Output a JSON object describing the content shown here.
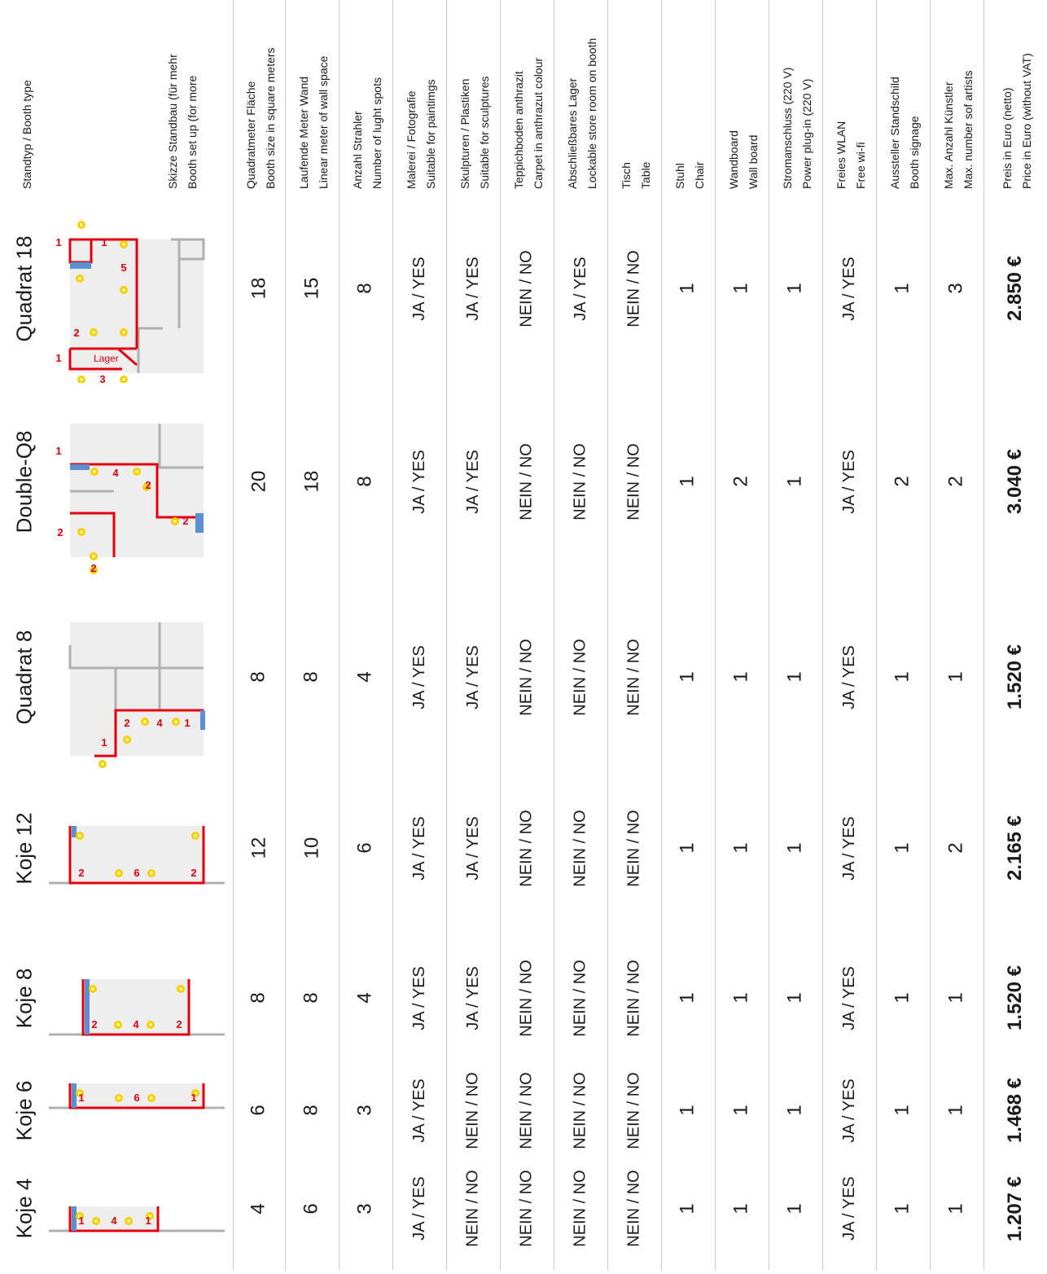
{
  "headers": [
    {
      "lines": [
        "Standtyp / Booth type"
      ]
    },
    {
      "lines": [
        "Skizze Standbau (für mehr",
        "Booth set up (for more"
      ]
    },
    {
      "lines": [
        "Quadratmeter Fläche",
        "Booth size in square meters"
      ]
    },
    {
      "lines": [
        "Laufende Meter Wand",
        "Linear meter of wall space"
      ]
    },
    {
      "lines": [
        "Anzahl Strahler",
        "Number of lught spots"
      ]
    },
    {
      "lines": [
        "Malerei / Fotografie",
        "Suitable for paintimgs"
      ]
    },
    {
      "lines": [
        "Skulpturen / Plastiken",
        "Suitable for sculptures"
      ]
    },
    {
      "lines": [
        "Teppichboden anthrazit",
        "Carpet in anthrazut colour"
      ]
    },
    {
      "lines": [
        "Abschließbares Lager",
        "Lockable store room on booth"
      ]
    },
    {
      "lines": [
        "Tisch",
        "Table"
      ]
    },
    {
      "lines": [
        "Stuhl",
        "Chair"
      ]
    },
    {
      "lines": [
        "Wandboard",
        "Wall board"
      ]
    },
    {
      "lines": [
        "Stromanschluss (220 V)",
        "Power plug-in (220 V)"
      ]
    },
    {
      "lines": [
        "Freies WLAN",
        "Free wi-fi"
      ]
    },
    {
      "lines": [
        "Aussteller Standschild",
        "Booth signage"
      ]
    },
    {
      "lines": [
        "Max. Anzahl Künstler",
        "Max. number sof artists"
      ]
    },
    {
      "lines": [
        "Preis in Euro (netto)",
        "Price in Euro (without VAT)"
      ]
    }
  ],
  "booths": [
    {
      "name": "Quadrat 18",
      "values": [
        "18",
        "15",
        "8",
        "JA / YES",
        "JA / YES",
        "NEIN / NO",
        "JA / YES",
        "NEIN / NO",
        "1",
        "1",
        "1",
        "JA / YES",
        "1",
        "3",
        "2.850 €"
      ],
      "sketch": {
        "labels": [
          "1",
          "1",
          "5",
          "2",
          "1",
          "3"
        ],
        "store_label": "Lager"
      }
    },
    {
      "name": "Double-Q8",
      "values": [
        "20",
        "18",
        "8",
        "JA / YES",
        "JA / YES",
        "NEIN / NO",
        "NEIN / NO",
        "NEIN / NO",
        "1",
        "2",
        "1",
        "JA / YES",
        "2",
        "2",
        "3.040 €"
      ],
      "sketch": {
        "labels": [
          "1",
          "4",
          "2",
          "2",
          "2",
          "2"
        ]
      }
    },
    {
      "name": "Quadrat 8",
      "values": [
        "8",
        "8",
        "4",
        "JA / YES",
        "JA / YES",
        "NEIN / NO",
        "NEIN / NO",
        "NEIN / NO",
        "1",
        "1",
        "1",
        "JA / YES",
        "1",
        "1",
        "1.520 €"
      ],
      "sketch": {
        "labels": [
          "2",
          "4",
          "1",
          "1"
        ]
      }
    },
    {
      "name": "Koje 12",
      "values": [
        "12",
        "10",
        "6",
        "JA / YES",
        "JA / YES",
        "NEIN / NO",
        "NEIN / NO",
        "NEIN / NO",
        "1",
        "1",
        "1",
        "JA / YES",
        "1",
        "2",
        "2.165 €"
      ],
      "sketch": {
        "labels": [
          "2",
          "6",
          "2"
        ]
      }
    },
    {
      "name": "Koje 8",
      "values": [
        "8",
        "8",
        "4",
        "JA / YES",
        "JA / YES",
        "NEIN / NO",
        "NEIN / NO",
        "NEIN / NO",
        "1",
        "1",
        "1",
        "JA / YES",
        "1",
        "1",
        "1.520 €"
      ],
      "sketch": {
        "labels": [
          "2",
          "4",
          "2"
        ]
      }
    },
    {
      "name": "Koje 6",
      "values": [
        "6",
        "8",
        "3",
        "JA / YES",
        "NEIN / NO",
        "NEIN / NO",
        "NEIN / NO",
        "NEIN / NO",
        "1",
        "1",
        "1",
        "JA / YES",
        "1",
        "1",
        "1.468 €"
      ],
      "sketch": {
        "labels": [
          "1",
          "6",
          "1"
        ]
      }
    },
    {
      "name": "Koje 4",
      "values": [
        "4",
        "6",
        "3",
        "JA / YES",
        "NEIN / NO",
        "NEIN / NO",
        "NEIN / NO",
        "NEIN / NO",
        "1",
        "1",
        "1",
        "JA / YES",
        "1",
        "1",
        "1.207 €"
      ],
      "sketch": {
        "labels": [
          "1",
          "4",
          "1"
        ]
      }
    }
  ],
  "colors": {
    "wall": "#e3000f",
    "grey_wall": "#b0b0b0",
    "floor": "#eeeeee",
    "blue": "#5b8fd0",
    "bulb": "#f5d000"
  }
}
